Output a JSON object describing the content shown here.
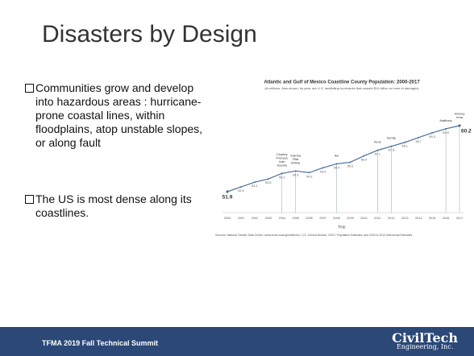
{
  "slide": {
    "title": "Disasters by Design",
    "bullets": [
      "Communities grow and develop into hazardous areas : hurricane-prone coastal lines, within floodplains, atop unstable slopes, or along fault",
      "The US is most dense along its coastlines."
    ],
    "footer": "TFMA 2019 Fall Technical Summit",
    "logo": {
      "name": "CivilTech",
      "sub": "Engineering, Inc."
    }
  },
  "chart_data": {
    "type": "line",
    "title": "Atlantic and Gulf of Mexico Coastline County Population: 2000-2017",
    "subtitle": "(in millions. Also shown, by year, are U.S. landfalling hurricanes that caused $10 billion or more in damages)",
    "x_label": "Year",
    "source": "Sources: National Climatic Data Center <www.ncdc.noaa.gov/billions>; U.S. Census Bureau, V2017 Population Estimates, and 2000 to 2010 Intercensal Estimates",
    "categories": [
      "2000",
      "2001",
      "2002",
      "2003",
      "2004",
      "2005",
      "2006",
      "2007",
      "2008",
      "2009",
      "2010",
      "2011",
      "2012",
      "2013",
      "2014",
      "2015",
      "2016",
      "2017"
    ],
    "values": [
      51.9,
      52.5,
      53.1,
      53.5,
      54.2,
      54.5,
      54.3,
      54.9,
      55.4,
      55.6,
      56.4,
      57.1,
      57.6,
      58.1,
      58.7,
      59.3,
      59.8,
      60.2
    ],
    "color": "#4a6f9a",
    "annotations": [
      {
        "x": "2004",
        "text": "Charley Frances Ivan Jeanne"
      },
      {
        "x": "2005",
        "text": "Katrina Rita Wilma"
      },
      {
        "x": "2008",
        "text": "Ike"
      },
      {
        "x": "2011",
        "text": "Irene"
      },
      {
        "x": "2012",
        "text": "Sandy"
      },
      {
        "x": "2016",
        "text": "Matthew"
      },
      {
        "x": "2017",
        "text": "Harvey Irma"
      }
    ]
  }
}
